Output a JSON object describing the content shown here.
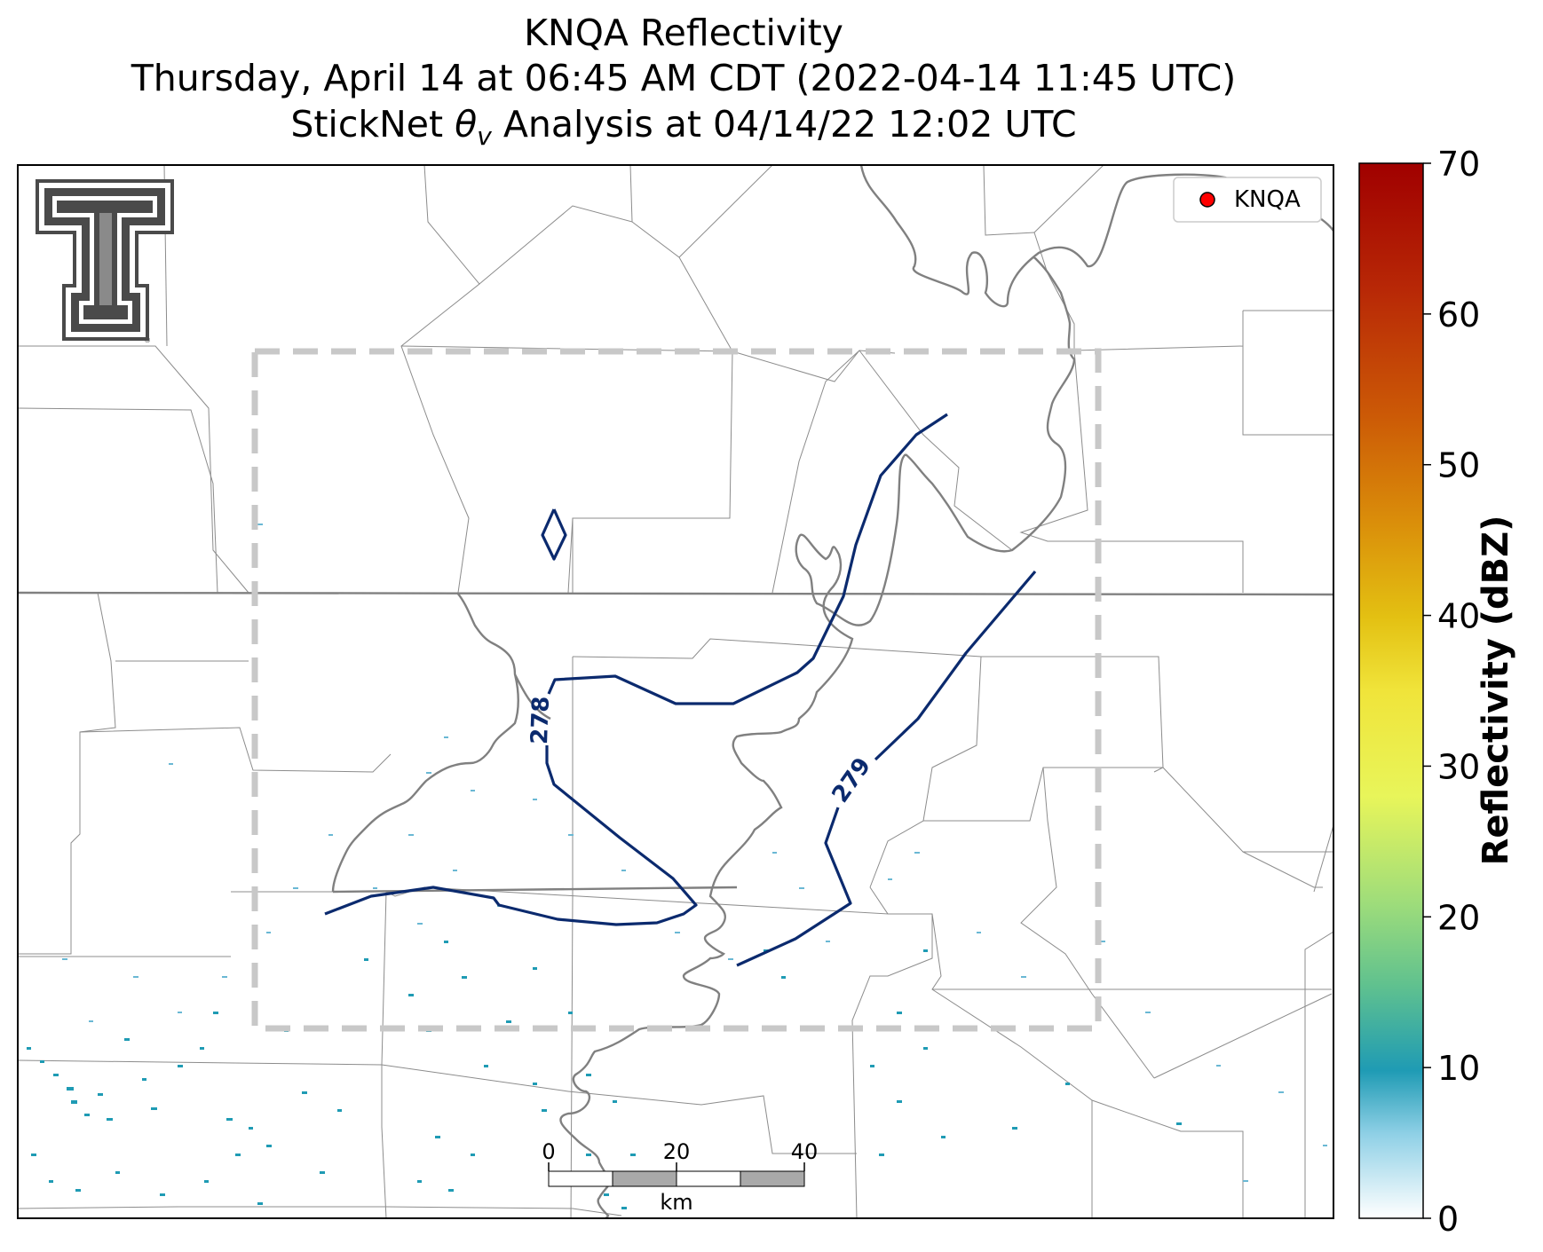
{
  "title": {
    "line1": "KNQA Reflectivity",
    "line2": "Thursday, April 14 at 06:45 AM CDT (2022-04-14 11:45 UTC)",
    "line3_prefix": "StickNet ",
    "line3_theta": "θ",
    "line3_sub": "v",
    "line3_suffix": " Analysis at 04/14/22 12:02 UTC"
  },
  "legend": {
    "label": "KNQA",
    "marker_color": "#ff0000"
  },
  "contours": [
    {
      "label": "278",
      "color": "#0b2a6e"
    },
    {
      "label": "279",
      "color": "#0b2a6e"
    }
  ],
  "scale_bar": {
    "ticks": [
      "0",
      "20",
      "40"
    ],
    "unit": "km"
  },
  "colorbar": {
    "label": "Reflectivity (dBZ)",
    "ticks": [
      "0",
      "10",
      "20",
      "30",
      "40",
      "50",
      "60",
      "70"
    ],
    "min": 0,
    "max": 70,
    "colors": [
      "#ffffff",
      "#1f9bb4",
      "#7ed27a",
      "#e8f55a",
      "#e7c812",
      "#d9860a",
      "#c83c08",
      "#a00000"
    ]
  },
  "logo": {
    "name": "texas-tech-double-t-logo"
  }
}
